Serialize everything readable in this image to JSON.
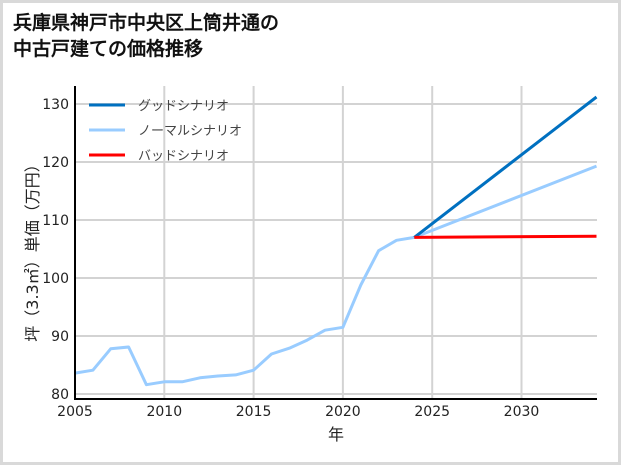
{
  "title": {
    "line1": "兵庫県神戸市中央区上筒井通の",
    "line2": "中古戸建ての価格推移"
  },
  "chart_data": {
    "type": "line",
    "title": "兵庫県神戸市中央区上筒井通の中古戸建ての価格推移",
    "xlabel": "年",
    "ylabel": "坪（3.3㎡）単価（万円）",
    "xlim": [
      2005,
      2034.2
    ],
    "ylim": [
      79.5,
      133
    ],
    "xticks": [
      2005,
      2010,
      2015,
      2020,
      2025,
      2030
    ],
    "yticks": [
      80,
      90,
      100,
      110,
      120,
      130
    ],
    "grid": true,
    "legend_position": "upper left",
    "series": [
      {
        "name": "グッドシナリオ",
        "color": "#0070c0",
        "x": [
          2024,
          2034.2
        ],
        "values": [
          107.0,
          131.2
        ]
      },
      {
        "name": "ノーマルシナリオ",
        "color": "#99ccff",
        "x": [
          2005,
          2006,
          2007,
          2008,
          2009,
          2010,
          2011,
          2012,
          2013,
          2014,
          2015,
          2016,
          2017,
          2018,
          2019,
          2020,
          2021,
          2022,
          2023,
          2024,
          2034.2
        ],
        "values": [
          83.6,
          84.1,
          87.8,
          88.1,
          81.6,
          82.1,
          82.1,
          82.8,
          83.1,
          83.3,
          84.1,
          86.9,
          87.9,
          89.3,
          91.0,
          91.5,
          98.8,
          104.7,
          106.5,
          107.0,
          119.3
        ]
      },
      {
        "name": "バッドシナリオ",
        "color": "#ff0000",
        "x": [
          2024,
          2034.2
        ],
        "values": [
          107.0,
          107.2
        ]
      }
    ]
  },
  "colors": {
    "grid": "#d3d3d3",
    "axis": "#000000",
    "border": "#d9d9d9"
  }
}
